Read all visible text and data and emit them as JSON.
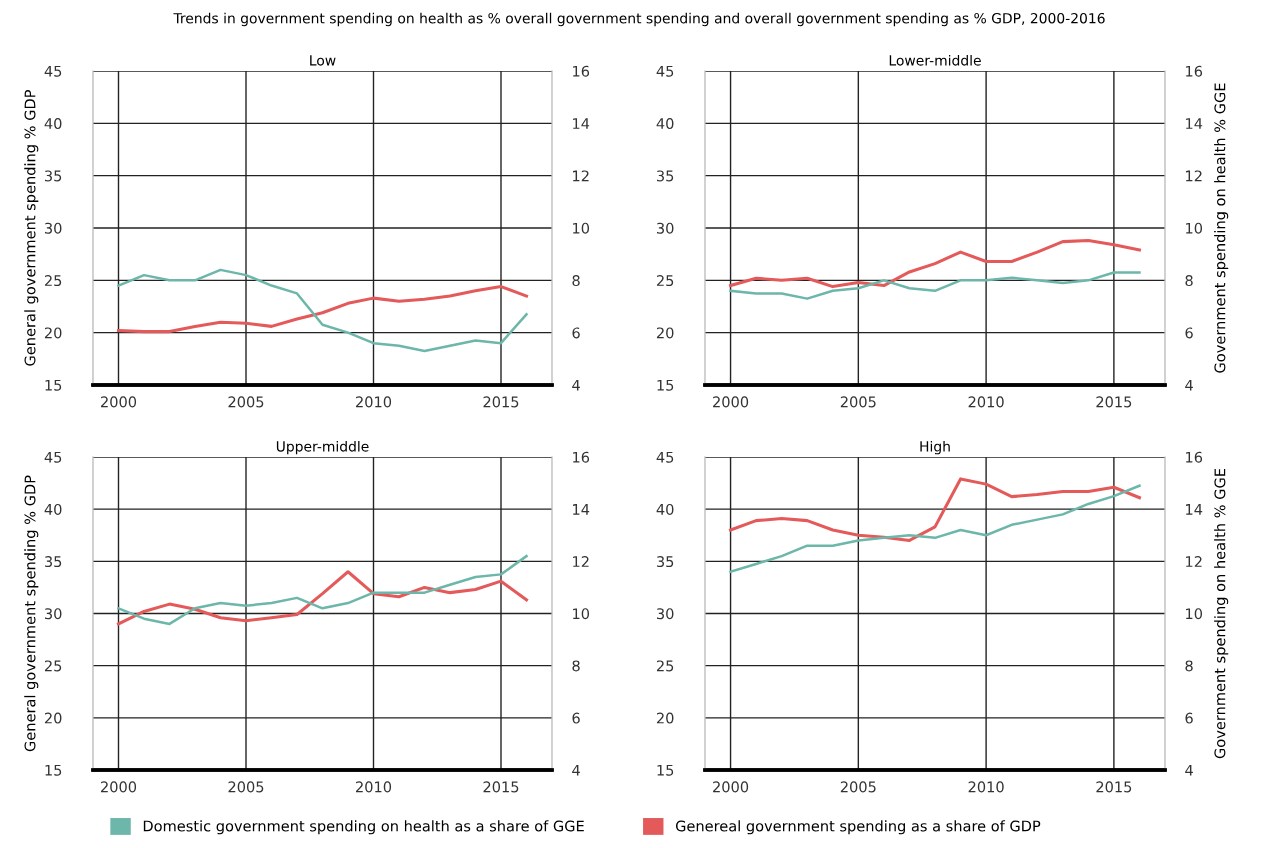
{
  "chart_data": [
    {
      "type": "line",
      "title": "Low",
      "ylabel": "General government spending % GDP",
      "annotations": [
        "Trends in government spending on health as % overall government spending and overall government spending as % GDP, 2000-2016"
      ],
      "x": [
        2000,
        2001,
        2002,
        2003,
        2004,
        2005,
        2006,
        2007,
        2008,
        2009,
        2010,
        2011,
        2012,
        2013,
        2014,
        2015,
        2016
      ],
      "xlim": [
        1999,
        2017
      ],
      "xticks": [
        2000,
        2005,
        2010,
        2015
      ],
      "ylim": [
        15,
        45
      ],
      "yticks": [
        15,
        20,
        25,
        30,
        35,
        40,
        45
      ],
      "y2lim": [
        4,
        16
      ],
      "y2ticks": [
        4,
        6,
        8,
        10,
        12,
        14,
        16
      ],
      "grid": true,
      "legend": "bottom",
      "marker": "none",
      "line_style": "solid",
      "series": [
        {
          "name": "Domestic government spending on health as a share of GGE",
          "color": "#6cb6aa",
          "axis": "y2",
          "values": [
            7.8,
            8.2,
            8.0,
            8.0,
            8.4,
            8.2,
            7.8,
            7.5,
            6.3,
            6.0,
            5.6,
            5.5,
            5.3,
            5.5,
            5.7,
            5.6,
            6.7
          ]
        },
        {
          "name": "Genereal government spending as a share of GDP",
          "color": "#e45a5a",
          "values": [
            20.2,
            20.1,
            20.1,
            20.6,
            21.0,
            20.9,
            20.6,
            21.3,
            21.9,
            22.8,
            23.3,
            23.0,
            23.2,
            23.5,
            24.0,
            24.4,
            23.5
          ]
        }
      ]
    },
    {
      "type": "line",
      "title": "Lower-middle",
      "y2label": "Government spending on health % GGE",
      "x": [
        2000,
        2001,
        2002,
        2003,
        2004,
        2005,
        2006,
        2007,
        2008,
        2009,
        2010,
        2011,
        2012,
        2013,
        2014,
        2015,
        2016
      ],
      "xlim": [
        1999,
        2017
      ],
      "xticks": [
        2000,
        2005,
        2010,
        2015
      ],
      "ylim": [
        15,
        45
      ],
      "yticks": [
        15,
        20,
        25,
        30,
        35,
        40,
        45
      ],
      "y2lim": [
        4,
        16
      ],
      "y2ticks": [
        4,
        6,
        8,
        10,
        12,
        14,
        16
      ],
      "grid": true,
      "legend": "bottom",
      "marker": "none",
      "line_style": "solid",
      "series": [
        {
          "name": "Domestic government spending on health as a share of GGE",
          "color": "#6cb6aa",
          "axis": "y2",
          "values": [
            7.6,
            7.5,
            7.5,
            7.3,
            7.6,
            7.7,
            8.0,
            7.7,
            7.6,
            8.0,
            8.0,
            8.1,
            8.0,
            7.9,
            8.0,
            8.3,
            8.3
          ]
        },
        {
          "name": "Genereal government spending as a share of GDP",
          "color": "#e45a5a",
          "values": [
            24.5,
            25.2,
            25.0,
            25.2,
            24.4,
            24.8,
            24.5,
            25.8,
            26.6,
            27.7,
            26.8,
            26.8,
            27.7,
            28.7,
            28.8,
            28.4,
            27.9
          ]
        }
      ]
    },
    {
      "type": "line",
      "title": "Upper-middle",
      "ylabel": "General government spending % GDP",
      "x": [
        2000,
        2001,
        2002,
        2003,
        2004,
        2005,
        2006,
        2007,
        2008,
        2009,
        2010,
        2011,
        2012,
        2013,
        2014,
        2015,
        2016
      ],
      "xlim": [
        1999,
        2017
      ],
      "xticks": [
        2000,
        2005,
        2010,
        2015
      ],
      "ylim": [
        15,
        45
      ],
      "yticks": [
        15,
        20,
        25,
        30,
        35,
        40,
        45
      ],
      "y2lim": [
        4,
        16
      ],
      "y2ticks": [
        4,
        6,
        8,
        10,
        12,
        14,
        16
      ],
      "grid": true,
      "legend": "bottom",
      "marker": "none",
      "line_style": "solid",
      "series": [
        {
          "name": "Domestic government spending on health as a share of GGE",
          "color": "#6cb6aa",
          "axis": "y2",
          "values": [
            10.2,
            9.8,
            9.6,
            10.2,
            10.4,
            10.3,
            10.4,
            10.6,
            10.2,
            10.4,
            10.8,
            10.8,
            10.8,
            11.1,
            11.4,
            11.5,
            12.2
          ]
        },
        {
          "name": "Genereal government spending as a share of GDP",
          "color": "#e45a5a",
          "values": [
            29.0,
            30.2,
            30.9,
            30.4,
            29.6,
            29.3,
            29.6,
            29.9,
            31.9,
            34.0,
            31.9,
            31.6,
            32.5,
            32.0,
            32.3,
            33.1,
            31.3
          ]
        }
      ]
    },
    {
      "type": "line",
      "title": "High",
      "y2label": "Government spending on health % GGE",
      "x": [
        2000,
        2001,
        2002,
        2003,
        2004,
        2005,
        2006,
        2007,
        2008,
        2009,
        2010,
        2011,
        2012,
        2013,
        2014,
        2015,
        2016
      ],
      "xlim": [
        1999,
        2017
      ],
      "xticks": [
        2000,
        2005,
        2010,
        2015
      ],
      "ylim": [
        15,
        45
      ],
      "yticks": [
        15,
        20,
        25,
        30,
        35,
        40,
        45
      ],
      "y2lim": [
        4,
        16
      ],
      "y2ticks": [
        4,
        6,
        8,
        10,
        12,
        14,
        16
      ],
      "grid": true,
      "legend": "bottom",
      "marker": "none",
      "line_style": "solid",
      "series": [
        {
          "name": "Domestic government spending on health as a share of GGE",
          "color": "#6cb6aa",
          "axis": "y2",
          "values": [
            11.6,
            11.9,
            12.2,
            12.6,
            12.6,
            12.8,
            12.9,
            13.0,
            12.9,
            13.2,
            13.0,
            13.4,
            13.6,
            13.8,
            14.2,
            14.5,
            14.9
          ]
        },
        {
          "name": "Genereal government spending as a share of GDP",
          "color": "#e45a5a",
          "values": [
            38.0,
            38.9,
            39.1,
            38.9,
            38.0,
            37.5,
            37.3,
            37.0,
            38.3,
            42.9,
            42.4,
            41.2,
            41.4,
            41.7,
            41.7,
            42.1,
            41.1
          ]
        }
      ]
    }
  ]
}
